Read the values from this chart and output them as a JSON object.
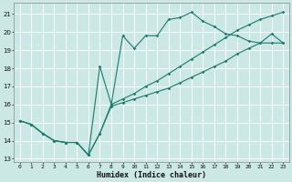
{
  "xlabel": "Humidex (Indice chaleur)",
  "bg_color": "#cce8e5",
  "line_color": "#1a7a6e",
  "grid_color": "#ffffff",
  "xlim": [
    -0.5,
    23.5
  ],
  "ylim": [
    12.8,
    21.6
  ],
  "xticks": [
    0,
    1,
    2,
    3,
    4,
    5,
    6,
    7,
    8,
    9,
    10,
    11,
    12,
    13,
    14,
    15,
    16,
    17,
    18,
    19,
    20,
    21,
    22,
    23
  ],
  "yticks": [
    13,
    14,
    15,
    16,
    17,
    18,
    19,
    20,
    21
  ],
  "series1_x": [
    0,
    1,
    2,
    3,
    4,
    5,
    6,
    7,
    8,
    9,
    10,
    11,
    12,
    13,
    14,
    15,
    16,
    17,
    18,
    19,
    20,
    21,
    22,
    23
  ],
  "series1_y": [
    15.1,
    14.9,
    14.4,
    14.0,
    13.9,
    13.9,
    13.2,
    14.4,
    15.9,
    16.1,
    16.3,
    16.5,
    16.7,
    16.9,
    17.2,
    17.5,
    17.8,
    18.1,
    18.4,
    18.8,
    19.1,
    19.4,
    19.4,
    19.4
  ],
  "series2_x": [
    0,
    1,
    2,
    3,
    4,
    5,
    6,
    7,
    8,
    9,
    10,
    11,
    12,
    13,
    14,
    15,
    16,
    17,
    18,
    19,
    20,
    21,
    22,
    23
  ],
  "series2_y": [
    15.1,
    14.9,
    14.4,
    14.0,
    13.9,
    13.9,
    13.2,
    14.4,
    16.0,
    16.3,
    16.6,
    17.0,
    17.3,
    17.7,
    18.1,
    18.5,
    18.9,
    19.3,
    19.7,
    20.1,
    20.4,
    20.7,
    20.9,
    21.1
  ],
  "series3_x": [
    0,
    1,
    2,
    3,
    4,
    5,
    6,
    7,
    8,
    9,
    10,
    11,
    12,
    13,
    14,
    15,
    16,
    17,
    18,
    19,
    20,
    21,
    22,
    23
  ],
  "series3_y": [
    15.1,
    14.9,
    14.4,
    14.0,
    13.9,
    13.9,
    13.2,
    18.1,
    16.0,
    19.8,
    19.1,
    19.8,
    19.8,
    20.7,
    20.8,
    21.1,
    20.6,
    20.3,
    19.9,
    19.8,
    19.5,
    19.4,
    19.9,
    19.4
  ]
}
